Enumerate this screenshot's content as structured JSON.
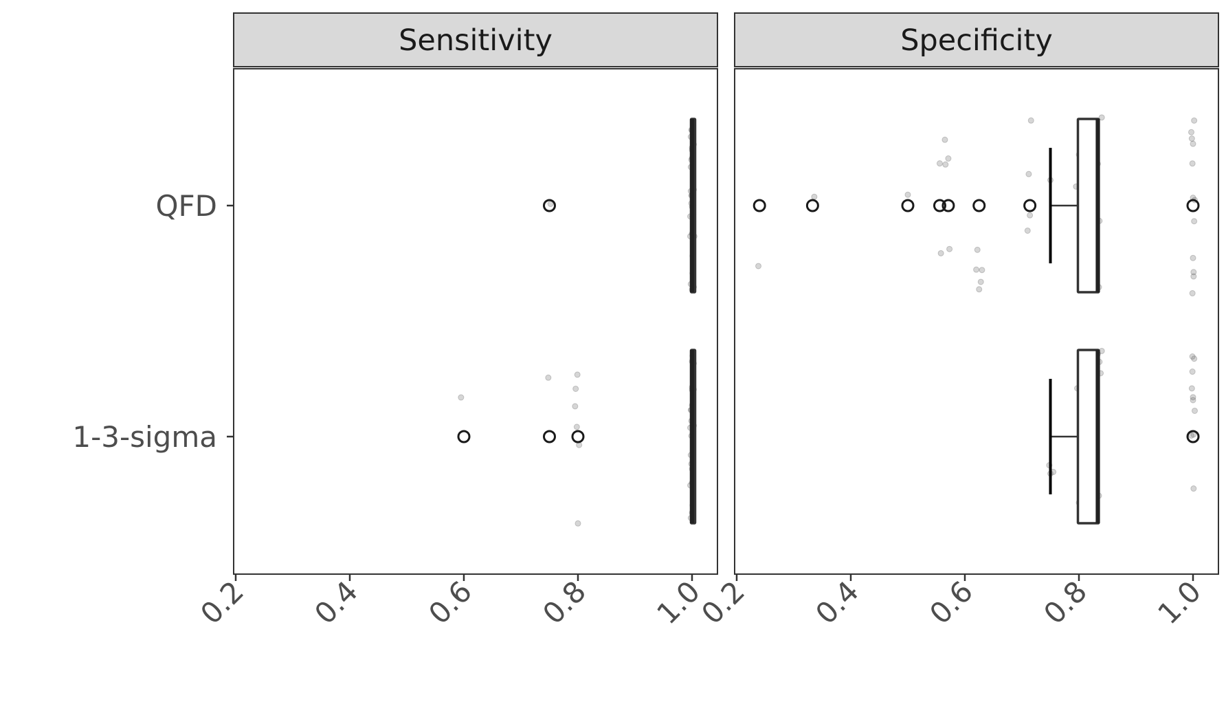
{
  "chart_data": {
    "type": "boxplot",
    "orientation": "horizontal",
    "categories": [
      "QFD",
      "1-3-sigma"
    ],
    "xlim": [
      0.2,
      1.0
    ],
    "x_ticks": [
      "0.2",
      "0.4",
      "0.6",
      "0.8",
      "1.0"
    ],
    "xlabel": "",
    "ylabel": "",
    "grid": false,
    "panels": [
      {
        "title": "Sensitivity",
        "boxes": [
          {
            "category": "QFD",
            "q1": 1.0,
            "median": 1.0,
            "q3": 1.0,
            "whisker_low": 1.0,
            "whisker_high": 1.0,
            "outliers": [
              0.75
            ],
            "jitter_points": [
              0.752,
              0.997,
              0.998,
              0.999,
              1.0,
              1.0,
              1.0,
              1.001,
              1.002,
              1.003,
              0.998,
              1.001,
              1.0,
              0.999,
              1.002,
              1.0,
              0.997,
              1.003,
              1.001,
              0.999,
              1.0,
              1.002,
              0.998,
              1.0,
              1.001,
              0.999,
              1.003,
              1.0,
              0.998,
              1.002,
              1.004
            ]
          },
          {
            "category": "1-3-sigma",
            "q1": 1.0,
            "median": 1.0,
            "q3": 1.0,
            "whisker_low": 1.0,
            "whisker_high": 1.0,
            "outliers": [
              0.6,
              0.75,
              0.8
            ],
            "jitter_points": [
              0.595,
              0.748,
              0.8,
              0.798,
              0.796,
              0.802,
              0.795,
              0.799,
              0.997,
              0.998,
              0.999,
              1.0,
              1.0,
              1.0,
              1.001,
              1.002,
              1.003,
              0.998,
              1.001,
              1.0,
              0.999,
              1.002,
              1.0,
              0.997,
              1.003,
              1.001,
              0.999,
              1.0,
              1.002,
              0.998,
              1.0,
              1.001,
              0.999,
              1.003
            ]
          }
        ]
      },
      {
        "title": "Specificity",
        "boxes": [
          {
            "category": "QFD",
            "q1": 0.8,
            "median": 0.833,
            "q3": 0.833,
            "whisker_low": 0.75,
            "whisker_high": 0.833,
            "outliers": [
              0.24,
              0.333,
              0.5,
              0.556,
              0.571,
              0.625,
              0.714,
              1.0
            ],
            "jitter_points": [
              0.238,
              0.336,
              0.5,
              0.556,
              0.571,
              0.573,
              0.565,
              0.566,
              0.558,
              0.62,
              0.625,
              0.628,
              0.63,
              0.622,
              0.71,
              0.714,
              0.716,
              0.712,
              0.75,
              0.8,
              0.795,
              0.805,
              0.83,
              0.833,
              0.835,
              0.84,
              0.828,
              0.836,
              0.831,
              0.997,
              0.999,
              1.0,
              1.001,
              1.002,
              1.003,
              0.998,
              1.0,
              1.001,
              0.999,
              1.002,
              1.0
            ]
          },
          {
            "category": "1-3-sigma",
            "q1": 0.8,
            "median": 0.833,
            "q3": 0.833,
            "whisker_low": 0.75,
            "whisker_high": 0.833,
            "outliers": [
              1.0
            ],
            "jitter_points": [
              0.75,
              0.755,
              0.748,
              0.8,
              0.797,
              0.803,
              0.83,
              0.833,
              0.836,
              0.84,
              0.828,
              0.835,
              0.831,
              0.838,
              0.997,
              0.999,
              1.0,
              1.001,
              1.002,
              1.003,
              0.998,
              1.0,
              1.001,
              0.999
            ]
          }
        ]
      }
    ]
  }
}
